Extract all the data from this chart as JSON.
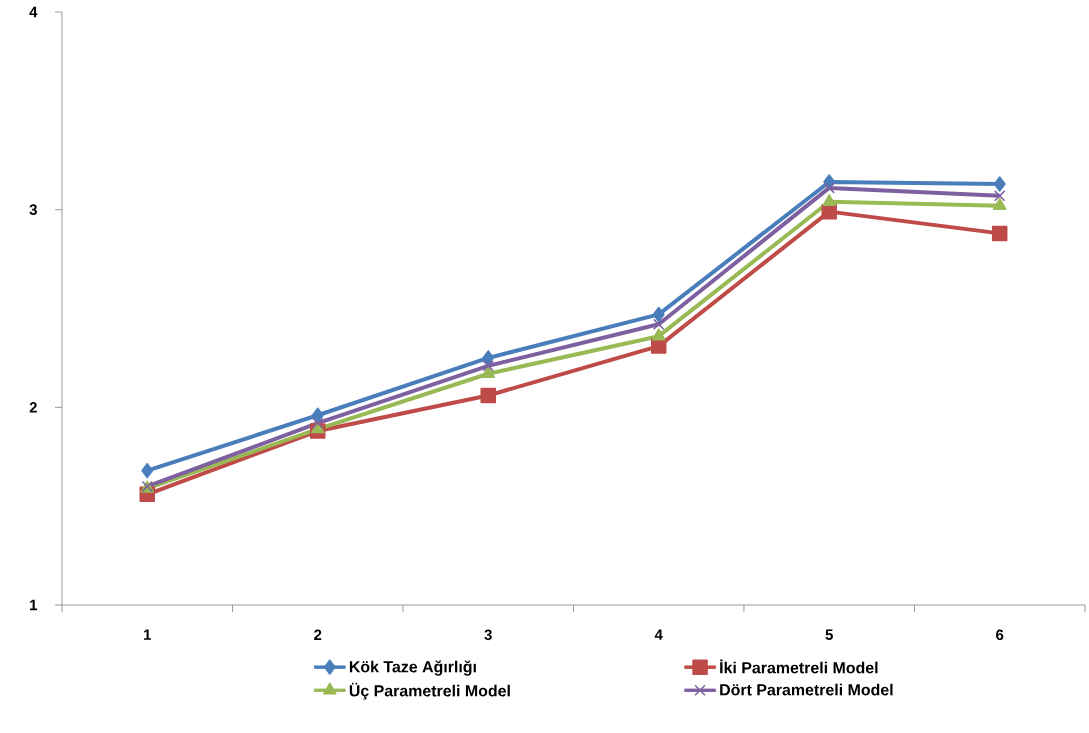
{
  "chart_data": {
    "type": "line",
    "categories": [
      "1",
      "2",
      "3",
      "4",
      "5",
      "6"
    ],
    "series": [
      {
        "name": "Kök Taze Ağırlığı",
        "color": "#4a7ebb",
        "marker": "diamond",
        "values": [
          1.68,
          1.96,
          2.25,
          2.47,
          3.14,
          3.13
        ]
      },
      {
        "name": "İki Parametreli Model",
        "color": "#be4b48",
        "marker": "square",
        "values": [
          1.56,
          1.88,
          2.06,
          2.31,
          2.99,
          2.88
        ]
      },
      {
        "name": "Üç Parametreli Model",
        "color": "#98b954",
        "marker": "triangle",
        "values": [
          1.59,
          1.89,
          2.17,
          2.36,
          3.04,
          3.02
        ]
      },
      {
        "name": "Dört Parametreli Model",
        "color": "#7d60a0",
        "marker": "cross",
        "values": [
          1.6,
          1.92,
          2.21,
          2.42,
          3.11,
          3.07
        ]
      }
    ],
    "ylim": [
      1,
      4
    ],
    "yticks": [
      1,
      2,
      3,
      4
    ],
    "grid": false,
    "legend": "bottom",
    "line_style": "solid"
  }
}
